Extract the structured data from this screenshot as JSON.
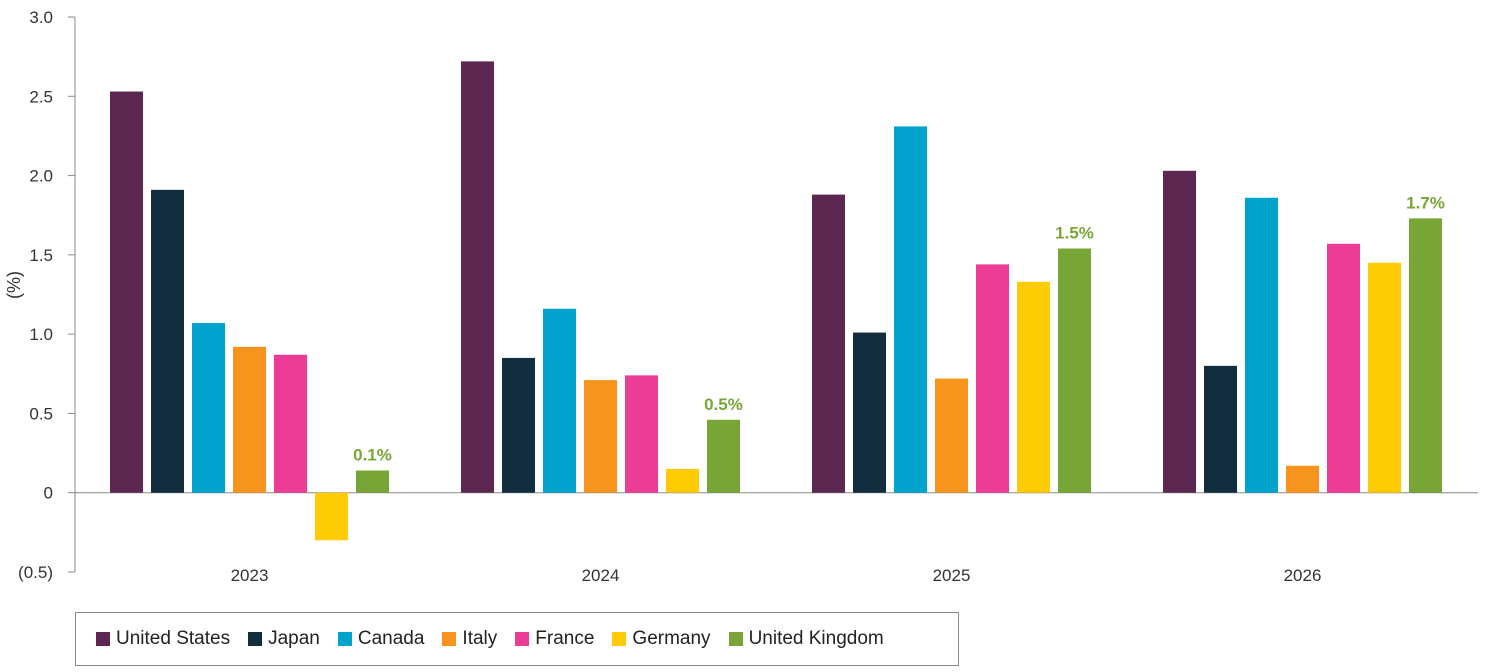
{
  "chart_data": {
    "type": "bar",
    "ylabel": "(%)",
    "ylim": [
      -0.5,
      3.0
    ],
    "yticks": [
      {
        "value": 3.0,
        "label": "3.0"
      },
      {
        "value": 2.5,
        "label": "2.5"
      },
      {
        "value": 2.0,
        "label": "2.0"
      },
      {
        "value": 1.5,
        "label": "1.5"
      },
      {
        "value": 1.0,
        "label": "1.0"
      },
      {
        "value": 0.5,
        "label": "0.5"
      },
      {
        "value": 0,
        "label": "0"
      },
      {
        "value": -0.5,
        "label": "(0.5)"
      }
    ],
    "categories": [
      "2023",
      "2024",
      "2025",
      "2026"
    ],
    "series": [
      {
        "name": "United States",
        "color": "#5C2751",
        "values": [
          2.53,
          2.72,
          1.88,
          2.03
        ]
      },
      {
        "name": "Japan",
        "color": "#122D3E",
        "values": [
          1.91,
          0.85,
          1.01,
          0.8
        ]
      },
      {
        "name": "Canada",
        "color": "#00A3CC",
        "values": [
          1.07,
          1.16,
          2.31,
          1.86
        ]
      },
      {
        "name": "Italy",
        "color": "#F7941D",
        "values": [
          0.92,
          0.71,
          0.72,
          0.17
        ]
      },
      {
        "name": "France",
        "color": "#EC3C96",
        "values": [
          0.87,
          0.74,
          1.44,
          1.57
        ]
      },
      {
        "name": "Germany",
        "color": "#FFCB05",
        "values": [
          -0.3,
          0.15,
          1.33,
          1.45
        ]
      },
      {
        "name": "United Kingdom",
        "color": "#77A536",
        "values": [
          0.14,
          0.46,
          1.54,
          1.73
        ]
      }
    ],
    "annotations": [
      {
        "series": "United Kingdom",
        "category": "2023",
        "text": "0.1%"
      },
      {
        "series": "United Kingdom",
        "category": "2024",
        "text": "0.5%"
      },
      {
        "series": "United Kingdom",
        "category": "2025",
        "text": "1.5%"
      },
      {
        "series": "United Kingdom",
        "category": "2026",
        "text": "1.7%"
      }
    ],
    "annotation_color": "#77A536",
    "legend_position": "bottom-left",
    "grid": false
  }
}
